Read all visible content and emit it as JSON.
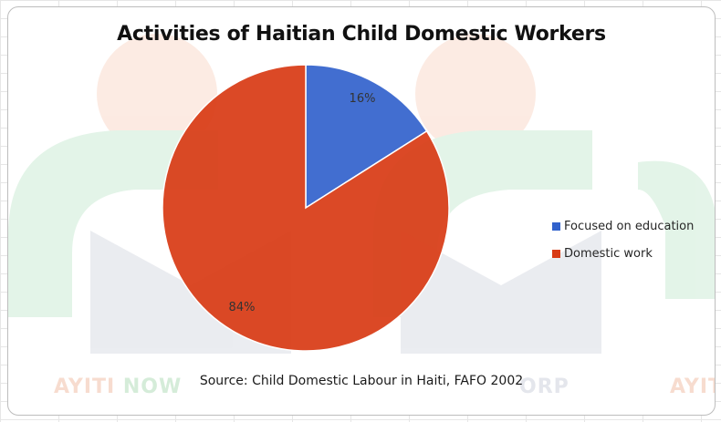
{
  "chart_data": {
    "type": "pie",
    "title": "Activities of Haitian Child Domestic Workers",
    "categories": [
      "Focused on education",
      "Domestic work"
    ],
    "values": [
      16,
      84
    ],
    "data_labels": [
      "16%",
      "84%"
    ],
    "colors": [
      "#3262cc",
      "#d83a14"
    ],
    "legend_position": "right",
    "source": "Source: Child Domestic Labour in Haiti, FAFO 2002"
  },
  "watermark": {
    "left_part1": "AYITI ",
    "left_part2": "NOW",
    "middle": "ORP",
    "right": "AYITI"
  }
}
